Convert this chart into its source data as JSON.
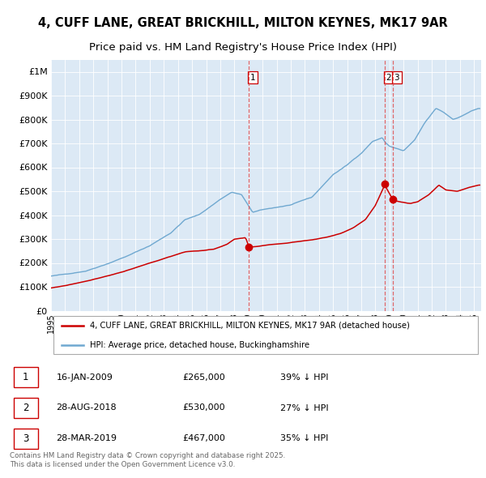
{
  "title_line1": "4, CUFF LANE, GREAT BRICKHILL, MILTON KEYNES, MK17 9AR",
  "title_line2": "Price paid vs. HM Land Registry's House Price Index (HPI)",
  "legend_line1": "4, CUFF LANE, GREAT BRICKHILL, MILTON KEYNES, MK17 9AR (detached house)",
  "legend_line2": "HPI: Average price, detached house, Buckinghamshire",
  "transactions": [
    {
      "num": 1,
      "date_str": "16-JAN-2009",
      "date_decimal": 2009.04,
      "price": 265000,
      "pct": "39% ↓ HPI"
    },
    {
      "num": 2,
      "date_str": "28-AUG-2018",
      "date_decimal": 2018.66,
      "price": 530000,
      "pct": "27% ↓ HPI"
    },
    {
      "num": 3,
      "date_str": "28-MAR-2019",
      "date_decimal": 2019.24,
      "price": 467000,
      "pct": "35% ↓ HPI"
    }
  ],
  "ytick_values": [
    0,
    100000,
    200000,
    300000,
    400000,
    500000,
    600000,
    700000,
    800000,
    900000,
    1000000
  ],
  "ylim": [
    0,
    1050000
  ],
  "xlim_start": 1995.0,
  "xlim_end": 2025.5,
  "background_color": "#dce9f5",
  "red_line_color": "#cc0000",
  "blue_line_color": "#6fa8d0",
  "dashed_color": "#e05050",
  "footer_text": "Contains HM Land Registry data © Crown copyright and database right 2025.\nThis data is licensed under the Open Government Licence v3.0."
}
